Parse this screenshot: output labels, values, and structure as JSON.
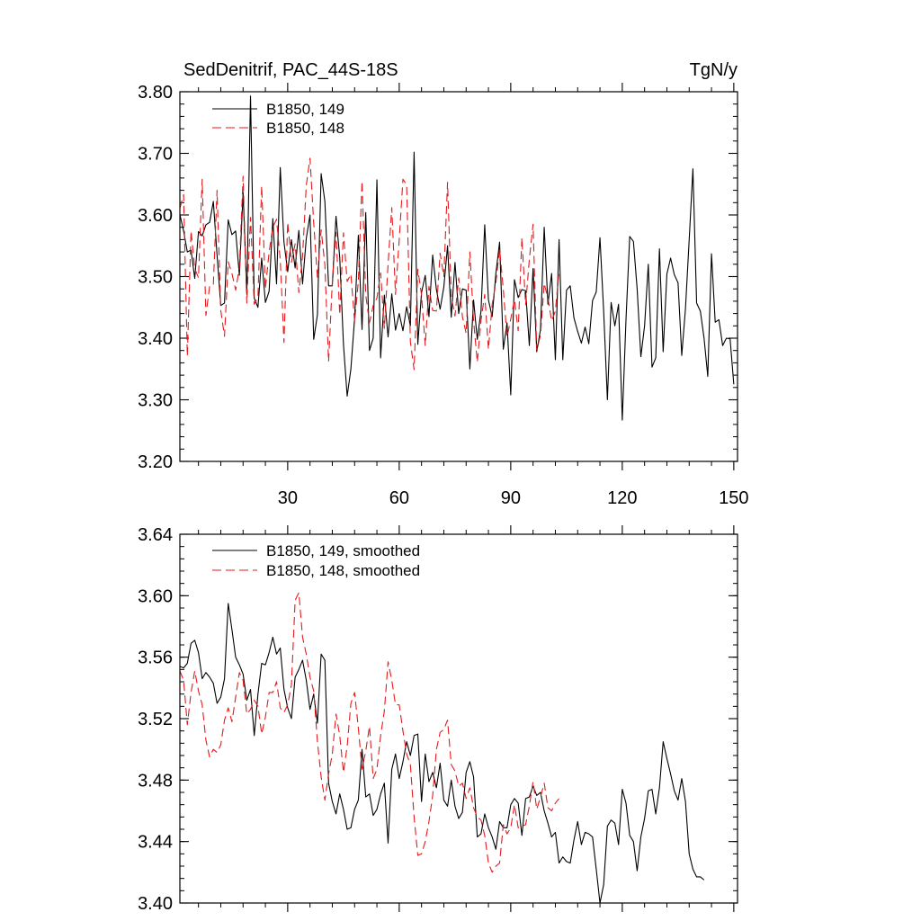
{
  "page_title": "SedDenitrif, PAC_44S-18S",
  "colors": {
    "series_149": "#000000",
    "series_148": "#e41a1c",
    "axis": "#000000"
  },
  "chart_data": [
    {
      "type": "line",
      "title": "SedDenitrif, PAC_44S-18S",
      "units": "TgN/y",
      "xlabel": "",
      "ylabel": "",
      "xlim": [
        1,
        151
      ],
      "ylim": [
        3.2,
        3.8
      ],
      "xticks": [
        30,
        60,
        90,
        120,
        150
      ],
      "xtick_labels": [
        "30",
        "60",
        "90",
        "120",
        "150"
      ],
      "yticks": [
        3.2,
        3.3,
        3.4,
        3.5,
        3.6,
        3.7,
        3.8
      ],
      "ytick_labels": [
        "3.20",
        "3.30",
        "3.40",
        "3.50",
        "3.60",
        "3.70",
        "3.80"
      ],
      "legend": "top-left",
      "series": [
        {
          "name": "B1850, 149",
          "style": "solid",
          "color": "#000000",
          "values": [
            3.601,
            3.574,
            3.54,
            3.543,
            3.497,
            3.573,
            3.566,
            3.584,
            3.588,
            3.622,
            3.535,
            3.453,
            3.457,
            3.592,
            3.568,
            3.574,
            3.502,
            3.637,
            3.471,
            3.793,
            3.465,
            3.45,
            3.53,
            3.458,
            3.476,
            3.594,
            3.488,
            3.677,
            3.556,
            3.508,
            3.56,
            3.514,
            3.575,
            3.488,
            3.562,
            3.6,
            3.398,
            3.438,
            3.667,
            3.622,
            3.485,
            3.485,
            3.598,
            3.531,
            3.39,
            3.306,
            3.35,
            3.432,
            3.567,
            3.414,
            3.604,
            3.38,
            3.4,
            3.657,
            3.368,
            3.47,
            3.402,
            3.472,
            3.413,
            3.44,
            3.412,
            3.451,
            3.42,
            3.702,
            3.39,
            3.474,
            3.502,
            3.435,
            3.535,
            3.479,
            3.447,
            3.483,
            3.55,
            3.434,
            3.523,
            3.44,
            3.48,
            3.478,
            3.35,
            3.462,
            3.398,
            3.444,
            3.584,
            3.462,
            3.435,
            3.505,
            3.556,
            3.382,
            3.425,
            3.308,
            3.495,
            3.466,
            3.479,
            3.477,
            3.388,
            3.513,
            3.378,
            3.414,
            3.58,
            3.455,
            3.505,
            3.365,
            3.56,
            3.365,
            3.478,
            3.485,
            3.433,
            3.411,
            3.392,
            3.418,
            3.391,
            3.461,
            3.475,
            3.563,
            3.443,
            3.3,
            3.458,
            3.42,
            3.455,
            3.267,
            3.43,
            3.565,
            3.557,
            3.48,
            3.37,
            3.42,
            3.52,
            3.353,
            3.368,
            3.545,
            3.378,
            3.504,
            3.53,
            3.503,
            3.49,
            3.372,
            3.448,
            3.56,
            3.675,
            3.457,
            3.444,
            3.4,
            3.338,
            3.537,
            3.426,
            3.43,
            3.388,
            3.4,
            3.399,
            3.325
          ]
        },
        {
          "name": "B1850, 148",
          "style": "dashed",
          "color": "#e41a1c",
          "values": [
            3.611,
            3.633,
            3.371,
            3.574,
            3.513,
            3.498,
            3.658,
            3.437,
            3.484,
            3.486,
            3.64,
            3.445,
            3.403,
            3.524,
            3.505,
            3.478,
            3.514,
            3.663,
            3.457,
            3.596,
            3.455,
            3.467,
            3.647,
            3.48,
            3.54,
            3.58,
            3.593,
            3.527,
            3.393,
            3.588,
            3.523,
            3.553,
            3.474,
            3.533,
            3.648,
            3.692,
            3.587,
            3.498,
            3.576,
            3.519,
            3.362,
            3.491,
            3.572,
            3.438,
            3.571,
            3.492,
            3.504,
            3.427,
            3.492,
            3.655,
            3.47,
            3.425,
            3.453,
            3.465,
            3.506,
            3.416,
            3.52,
            3.612,
            3.471,
            3.56,
            3.658,
            3.649,
            3.394,
            3.349,
            3.512,
            3.47,
            3.388,
            3.484,
            3.445,
            3.444,
            3.538,
            3.5,
            3.653,
            3.468,
            3.436,
            3.498,
            3.435,
            3.408,
            3.54,
            3.429,
            3.361,
            3.429,
            3.471,
            3.382,
            3.455,
            3.49,
            3.545,
            3.479,
            3.402,
            3.431,
            3.463,
            3.412,
            3.563,
            3.454,
            3.528,
            3.585,
            3.381,
            3.405,
            3.489,
            3.465,
            3.428,
            3.444,
            3.51
          ]
        }
      ]
    },
    {
      "type": "line",
      "title": "",
      "xlabel": "",
      "ylabel": "",
      "xlim": [
        1,
        151
      ],
      "ylim": [
        3.4,
        3.64
      ],
      "xticks": [
        30,
        60,
        90,
        120,
        150
      ],
      "yticks": [
        3.4,
        3.44,
        3.48,
        3.52,
        3.56,
        3.6,
        3.64
      ],
      "ytick_labels": [
        "3.40",
        "3.44",
        "3.48",
        "3.52",
        "3.56",
        "3.60",
        "3.64"
      ],
      "legend": "top-left",
      "series": [
        {
          "name": "B1850, 149, smoothed",
          "style": "solid",
          "color": "#000000",
          "values": [
            3.554,
            3.553,
            3.556,
            3.569,
            3.571,
            3.563,
            3.546,
            3.55,
            3.547,
            3.543,
            3.53,
            3.534,
            3.546,
            3.595,
            3.578,
            3.56,
            3.555,
            3.549,
            3.532,
            3.539,
            3.509,
            3.536,
            3.556,
            3.555,
            3.563,
            3.573,
            3.562,
            3.566,
            3.539,
            3.527,
            3.52,
            3.547,
            3.552,
            3.558,
            3.545,
            3.526,
            3.536,
            3.517,
            3.562,
            3.558,
            3.478,
            3.466,
            3.458,
            3.471,
            3.461,
            3.448,
            3.449,
            3.461,
            3.467,
            3.5,
            3.469,
            3.471,
            3.457,
            3.461,
            3.471,
            3.478,
            3.439,
            3.487,
            3.497,
            3.481,
            3.492,
            3.505,
            3.496,
            3.509,
            3.51,
            3.466,
            3.497,
            3.479,
            3.485,
            3.475,
            3.491,
            3.467,
            3.463,
            3.48,
            3.463,
            3.455,
            3.459,
            3.485,
            3.492,
            3.482,
            3.443,
            3.445,
            3.458,
            3.449,
            3.443,
            3.435,
            3.453,
            3.449,
            3.449,
            3.464,
            3.468,
            3.465,
            3.444,
            3.468,
            3.469,
            3.476,
            3.47,
            3.472,
            3.46,
            3.452,
            3.443,
            3.446,
            3.426,
            3.43,
            3.427,
            3.426,
            3.441,
            3.453,
            3.438,
            3.446,
            3.445,
            3.443,
            3.422,
            3.4,
            3.412,
            3.45,
            3.454,
            3.452,
            3.438,
            3.474,
            3.465,
            3.444,
            3.44,
            3.421,
            3.443,
            3.455,
            3.473,
            3.474,
            3.458,
            3.475,
            3.505,
            3.494,
            3.484,
            3.473,
            3.467,
            3.481,
            3.466,
            3.432,
            3.422,
            3.417,
            3.417,
            3.415
          ]
        },
        {
          "name": "B1850, 148, smoothed",
          "style": "dashed",
          "color": "#e41a1c",
          "values": [
            3.551,
            3.545,
            3.516,
            3.537,
            3.551,
            3.538,
            3.529,
            3.506,
            3.495,
            3.5,
            3.498,
            3.503,
            3.519,
            3.527,
            3.518,
            3.534,
            3.55,
            3.545,
            3.523,
            3.526,
            3.532,
            3.528,
            3.51,
            3.521,
            3.537,
            3.537,
            3.544,
            3.527,
            3.524,
            3.529,
            3.542,
            3.597,
            3.602,
            3.573,
            3.562,
            3.547,
            3.538,
            3.505,
            3.482,
            3.467,
            3.484,
            3.497,
            3.523,
            3.509,
            3.485,
            3.502,
            3.53,
            3.537,
            3.514,
            3.487,
            3.499,
            3.515,
            3.481,
            3.487,
            3.509,
            3.525,
            3.557,
            3.545,
            3.529,
            3.529,
            3.512,
            3.497,
            3.49,
            3.456,
            3.431,
            3.432,
            3.44,
            3.453,
            3.47,
            3.5,
            3.511,
            3.513,
            3.519,
            3.49,
            3.486,
            3.476,
            3.478,
            3.468,
            3.475,
            3.462,
            3.456,
            3.454,
            3.444,
            3.426,
            3.42,
            3.424,
            3.426,
            3.451,
            3.445,
            3.449,
            3.464,
            3.449,
            3.45,
            3.451,
            3.463,
            3.479,
            3.461,
            3.469,
            3.478,
            3.462,
            3.46,
            3.465,
            3.468
          ]
        }
      ]
    }
  ]
}
